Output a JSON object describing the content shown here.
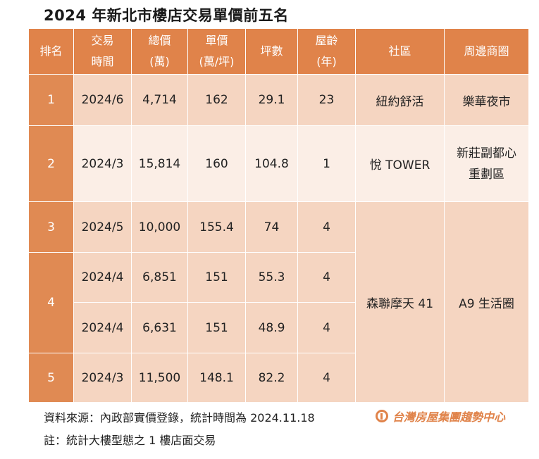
{
  "title": "2024 年新北市樓店交易單價前五名",
  "headers": {
    "rank": "排名",
    "time": [
      "交易",
      "時間"
    ],
    "total": [
      "總價",
      "(萬)"
    ],
    "unit": [
      "單價",
      "(萬/坪)"
    ],
    "area": "坪數",
    "age": [
      "屋齡",
      "(年)"
    ],
    "community": "社區",
    "district": "周邊商圈"
  },
  "rows": [
    {
      "rank": "1",
      "time": "2024/6",
      "total": "4,714",
      "unit": "162",
      "area": "29.1",
      "age": "23",
      "community": "紐約舒活",
      "district": "樂華夜市"
    },
    {
      "rank": "2",
      "time": "2024/3",
      "total": "15,814",
      "unit": "160",
      "area": "104.8",
      "age": "1",
      "community": "悅 TOWER",
      "district": [
        "新莊副都心",
        "重劃區"
      ]
    },
    {
      "rank": "3",
      "time": "2024/5",
      "total": "10,000",
      "unit": "155.4",
      "area": "74",
      "age": "4"
    },
    {
      "rank": "4",
      "time": "2024/4",
      "total": "6,851",
      "unit": "151",
      "area": "55.3",
      "age": "4"
    },
    {
      "time": "2024/4",
      "total": "6,631",
      "unit": "151",
      "area": "48.9",
      "age": "4"
    },
    {
      "rank": "5",
      "time": "2024/3",
      "total": "11,500",
      "unit": "148.1",
      "area": "82.2",
      "age": "4"
    }
  ],
  "merged": {
    "community": "森聯摩天 41",
    "district": "A9 生活圈"
  },
  "footer": {
    "source": "資料來源：內政部實價登錄，統計時間為 2024.11.18",
    "note": "註：統計大樓型態之 1 樓店面交易"
  },
  "logo": {
    "text": "台灣房屋集團趨勢中心",
    "color": "#e0834a"
  },
  "colors": {
    "header": "#e0834a",
    "row_dark": "#f5d5c1",
    "row_light": "#fbeee6"
  }
}
